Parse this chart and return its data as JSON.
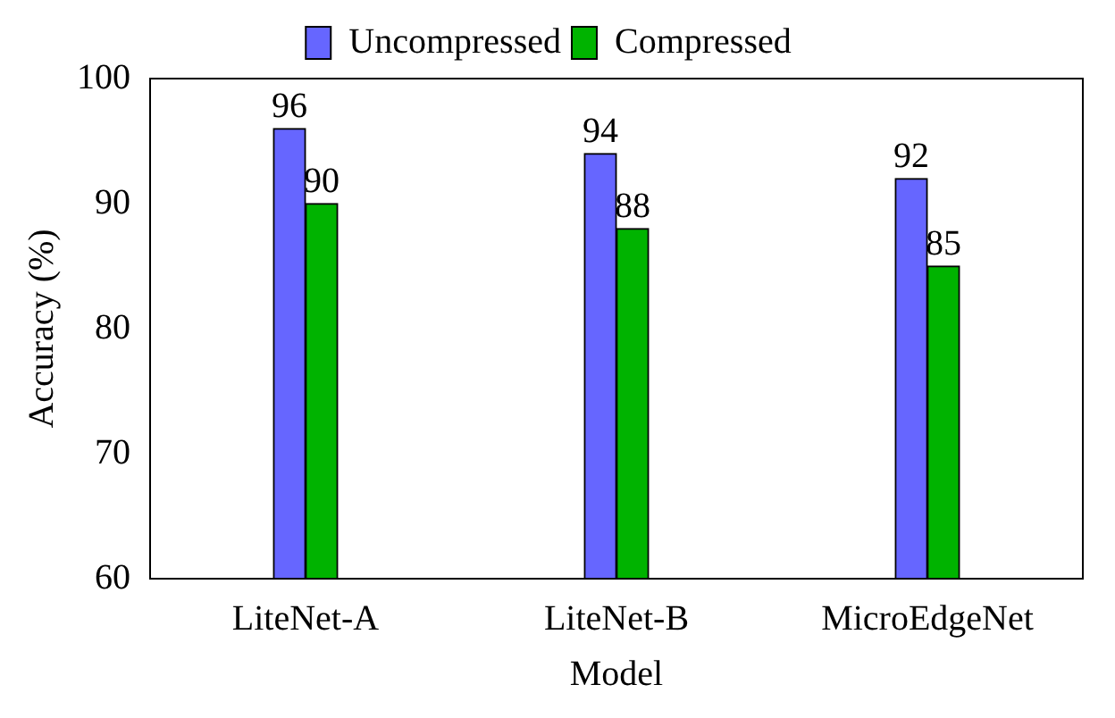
{
  "chart_data": {
    "type": "bar",
    "xlabel": "Model",
    "ylabel": "Accuracy (%)",
    "categories": [
      "LiteNet-A",
      "LiteNet-B",
      "MicroEdgeNet"
    ],
    "series": [
      {
        "name": "Uncompressed",
        "color": "#6666ff",
        "values": [
          96,
          94,
          92
        ]
      },
      {
        "name": "Compressed",
        "color": "#00b300",
        "values": [
          90,
          88,
          85
        ]
      }
    ],
    "ylim": [
      60,
      100
    ],
    "yticks": [
      60,
      70,
      80,
      90,
      100
    ],
    "grid": false,
    "legend": "top",
    "data_labels": true
  }
}
